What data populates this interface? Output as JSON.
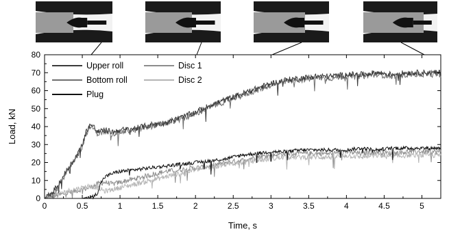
{
  "chart_data": {
    "type": "line",
    "title": "",
    "xlabel": "Time, s",
    "ylabel": "Load, kN",
    "xlim": [
      0,
      5.25
    ],
    "ylim": [
      0,
      80
    ],
    "xticks": [
      0,
      0.5,
      1,
      1.5,
      2,
      2.5,
      3,
      3.5,
      4,
      4.5,
      5
    ],
    "xtick_labels": [
      "0",
      "0.5",
      "1",
      "1.5",
      "2",
      "2.5",
      "3",
      "3.5",
      "4",
      "4.5",
      "5"
    ],
    "yticks": [
      0,
      10,
      20,
      30,
      40,
      50,
      60,
      70,
      80
    ],
    "ytick_labels": [
      "0",
      "10",
      "20",
      "30",
      "40",
      "50",
      "60",
      "70",
      "80"
    ],
    "grid": false,
    "legend": [
      {
        "label": "Upper roll",
        "color": "#3a3a3a"
      },
      {
        "label": "Bottom roll",
        "color": "#6e6e6e"
      },
      {
        "label": "Plug",
        "color": "#111111"
      },
      {
        "label": "Disc 1",
        "color": "#8c8c8c"
      },
      {
        "label": "Disc 2",
        "color": "#b4b4b4"
      }
    ],
    "legend_placement": "top-left",
    "series": [
      {
        "name": "Upper roll",
        "color": "#3a3a3a",
        "x": [
          0,
          0.1,
          0.2,
          0.3,
          0.4,
          0.5,
          0.55,
          0.6,
          0.65,
          0.7,
          0.8,
          0.9,
          1.0,
          1.2,
          1.4,
          1.6,
          1.8,
          2.0,
          2.2,
          2.4,
          2.6,
          2.8,
          3.0,
          3.2,
          3.4,
          3.6,
          3.8,
          4.0,
          4.2,
          4.4,
          4.6,
          4.8,
          5.0,
          5.25
        ],
        "y": [
          0,
          3,
          9,
          16,
          22,
          30,
          37,
          41,
          40,
          37,
          38,
          37,
          38,
          39,
          41,
          42,
          45,
          48,
          52,
          55,
          58,
          61,
          64,
          66,
          67,
          68,
          68,
          69,
          69,
          70,
          69,
          70,
          70,
          70
        ]
      },
      {
        "name": "Bottom roll",
        "color": "#6e6e6e",
        "x": [
          0,
          0.1,
          0.2,
          0.3,
          0.4,
          0.5,
          0.55,
          0.6,
          0.65,
          0.7,
          0.8,
          0.9,
          1.0,
          1.2,
          1.4,
          1.6,
          1.8,
          2.0,
          2.2,
          2.4,
          2.6,
          2.8,
          3.0,
          3.2,
          3.4,
          3.6,
          3.8,
          4.0,
          4.2,
          4.4,
          4.6,
          4.8,
          5.0,
          5.25
        ],
        "y": [
          0,
          2,
          8,
          15,
          21,
          29,
          36,
          40,
          39,
          36,
          37,
          36,
          37,
          38,
          40,
          42,
          44,
          47,
          51,
          54,
          57,
          60,
          63,
          65,
          66,
          67,
          67,
          68,
          68,
          69,
          68,
          69,
          69,
          69
        ]
      },
      {
        "name": "Plug",
        "color": "#111111",
        "x": [
          0,
          0.5,
          0.6,
          0.65,
          0.7,
          0.75,
          0.8,
          0.9,
          1.0,
          1.2,
          1.4,
          1.6,
          1.8,
          2.0,
          2.2,
          2.4,
          2.6,
          2.8,
          3.0,
          3.2,
          3.4,
          3.6,
          3.8,
          4.0,
          4.2,
          4.4,
          4.6,
          4.8,
          5.0,
          5.25
        ],
        "y": [
          0,
          0,
          1,
          1,
          3,
          9,
          12,
          14,
          15,
          16,
          17,
          18,
          19,
          20,
          21,
          22,
          24,
          25,
          26,
          26,
          27,
          27,
          27,
          27,
          28,
          27,
          28,
          28,
          28,
          28
        ]
      },
      {
        "name": "Disc 1",
        "color": "#8c8c8c",
        "x": [
          0,
          0.2,
          0.4,
          0.6,
          0.7,
          0.8,
          0.9,
          1.0,
          1.2,
          1.4,
          1.6,
          1.8,
          2.0,
          2.2,
          2.4,
          2.6,
          2.8,
          3.0,
          3.2,
          3.4,
          3.6,
          3.8,
          4.0,
          4.2,
          4.4,
          4.6,
          4.8,
          5.0,
          5.25
        ],
        "y": [
          0,
          2,
          4,
          6,
          8,
          9,
          8,
          9,
          11,
          13,
          15,
          16,
          17,
          18,
          20,
          21,
          23,
          24,
          25,
          25,
          25,
          25,
          26,
          25,
          26,
          25,
          26,
          26,
          26
        ]
      },
      {
        "name": "Disc 2",
        "color": "#b4b4b4",
        "x": [
          0,
          0.2,
          0.4,
          0.6,
          0.7,
          0.8,
          0.9,
          1.0,
          1.2,
          1.4,
          1.6,
          1.8,
          2.0,
          2.2,
          2.4,
          2.6,
          2.8,
          3.0,
          3.2,
          3.4,
          3.6,
          3.8,
          4.0,
          4.2,
          4.4,
          4.6,
          4.8,
          5.0,
          5.25
        ],
        "y": [
          0,
          3,
          5,
          7,
          6,
          4,
          5,
          6,
          8,
          10,
          12,
          14,
          16,
          17,
          19,
          20,
          21,
          22,
          23,
          23,
          23,
          23,
          24,
          23,
          24,
          23,
          24,
          24,
          24
        ]
      }
    ],
    "annotations": [
      {
        "type": "process-stage-image",
        "time": 0.75
      },
      {
        "type": "process-stage-image",
        "time": 2.0
      },
      {
        "type": "process-stage-image",
        "time": 3.0
      },
      {
        "type": "process-stage-image",
        "time": 5.0
      }
    ]
  }
}
